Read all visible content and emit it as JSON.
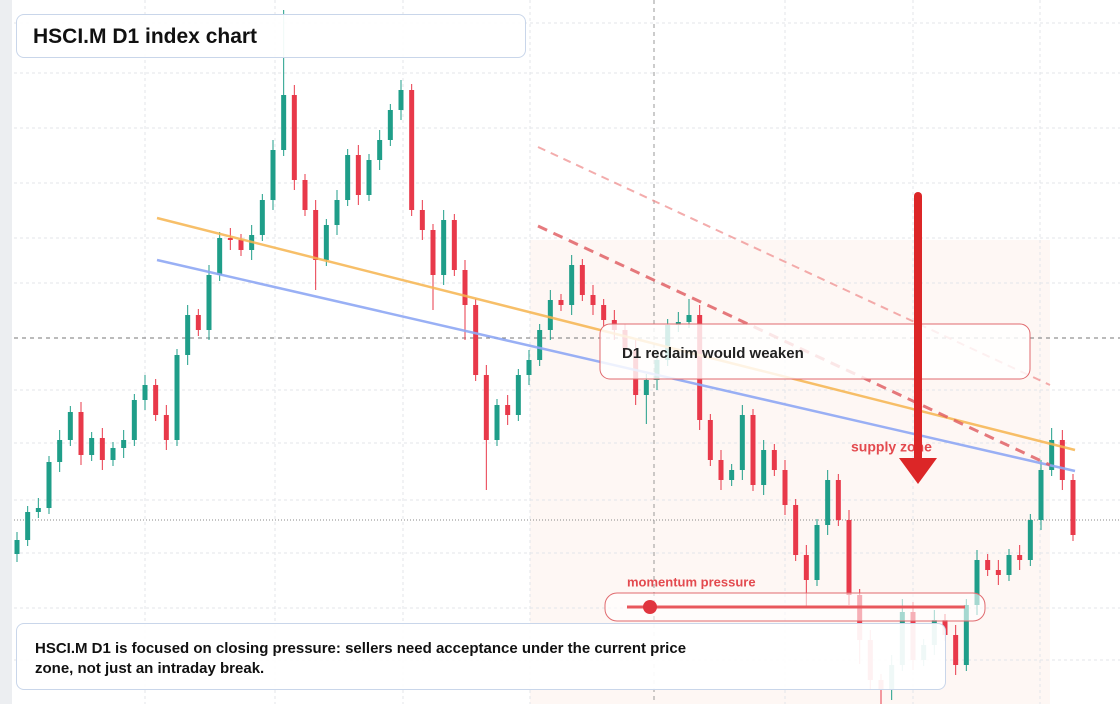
{
  "chart_data": {
    "type": "candlestick",
    "title": "HSCI.M D1 index chart",
    "ylim": [
      0,
      704
    ],
    "up_color": "#1f9e89",
    "down_color": "#e8394a",
    "open": [
      150,
      164,
      192,
      196,
      242,
      264,
      292,
      249,
      266,
      244,
      256,
      264,
      304,
      319,
      289,
      264,
      349,
      389,
      374,
      429,
      466,
      464,
      454,
      469,
      504,
      554,
      609,
      524,
      494,
      444,
      479,
      504,
      549,
      509,
      544,
      564,
      594,
      614,
      494,
      474,
      429,
      484,
      434,
      399,
      329,
      264,
      299,
      289,
      329,
      344,
      374,
      404,
      399,
      439,
      409,
      399,
      384,
      374,
      354,
      309,
      324,
      344,
      379,
      382,
      389,
      284,
      244,
      224,
      234,
      289,
      219,
      254,
      234,
      199,
      149,
      124,
      179,
      224,
      184,
      109,
      64,
      24,
      14,
      39,
      92,
      44,
      59,
      84,
      69,
      39,
      99,
      144,
      134,
      129,
      149,
      144,
      184,
      234,
      264,
      224
    ],
    "high": [
      172,
      198,
      206,
      248,
      274,
      298,
      302,
      272,
      276,
      262,
      274,
      310,
      329,
      325,
      299,
      355,
      399,
      395,
      439,
      472,
      476,
      470,
      479,
      510,
      564,
      694,
      619,
      530,
      504,
      485,
      514,
      555,
      559,
      550,
      574,
      600,
      624,
      620,
      504,
      480,
      494,
      490,
      444,
      405,
      339,
      305,
      309,
      335,
      354,
      380,
      414,
      410,
      449,
      445,
      419,
      405,
      394,
      380,
      364,
      330,
      354,
      385,
      392,
      405,
      399,
      290,
      254,
      240,
      299,
      295,
      264,
      260,
      244,
      205,
      159,
      185,
      234,
      230,
      194,
      115,
      74,
      30,
      49,
      105,
      102,
      65,
      94,
      90,
      79,
      105,
      154,
      150,
      144,
      155,
      159,
      190,
      244,
      276,
      274,
      230
    ],
    "low": [
      142,
      158,
      186,
      190,
      232,
      258,
      239,
      243,
      234,
      238,
      246,
      258,
      294,
      283,
      254,
      258,
      339,
      368,
      364,
      423,
      454,
      448,
      444,
      463,
      494,
      548,
      514,
      488,
      414,
      438,
      469,
      498,
      499,
      503,
      534,
      558,
      584,
      488,
      464,
      394,
      419,
      428,
      364,
      323,
      214,
      258,
      279,
      283,
      319,
      338,
      364,
      393,
      389,
      403,
      389,
      378,
      364,
      348,
      299,
      280,
      314,
      338,
      372,
      376,
      274,
      238,
      214,
      218,
      224,
      213,
      209,
      228,
      189,
      143,
      96,
      118,
      169,
      178,
      99,
      40,
      14,
      0,
      4,
      33,
      34,
      38,
      49,
      63,
      29,
      33,
      89,
      128,
      119,
      123,
      134,
      138,
      174,
      228,
      214,
      163
    ],
    "close": [
      164,
      192,
      196,
      242,
      264,
      292,
      249,
      266,
      244,
      256,
      264,
      304,
      319,
      289,
      264,
      349,
      389,
      374,
      429,
      466,
      464,
      454,
      469,
      504,
      554,
      609,
      524,
      494,
      444,
      479,
      504,
      549,
      509,
      544,
      564,
      594,
      614,
      494,
      474,
      429,
      484,
      434,
      399,
      329,
      264,
      299,
      289,
      329,
      344,
      374,
      404,
      399,
      439,
      409,
      399,
      384,
      374,
      354,
      309,
      324,
      344,
      379,
      382,
      389,
      284,
      244,
      224,
      234,
      289,
      219,
      254,
      234,
      199,
      149,
      124,
      179,
      224,
      184,
      109,
      64,
      24,
      14,
      39,
      92,
      44,
      59,
      84,
      69,
      39,
      99,
      144,
      134,
      129,
      149,
      144,
      184,
      234,
      264,
      224,
      169
    ],
    "annotations": [
      "D1 reclaim would weaken",
      "supply zone",
      "momentum pressure"
    ],
    "note": "HSCI.M D1 is focused on closing pressure: sellers need acceptance under the current price zone, not just an intraday break."
  }
}
